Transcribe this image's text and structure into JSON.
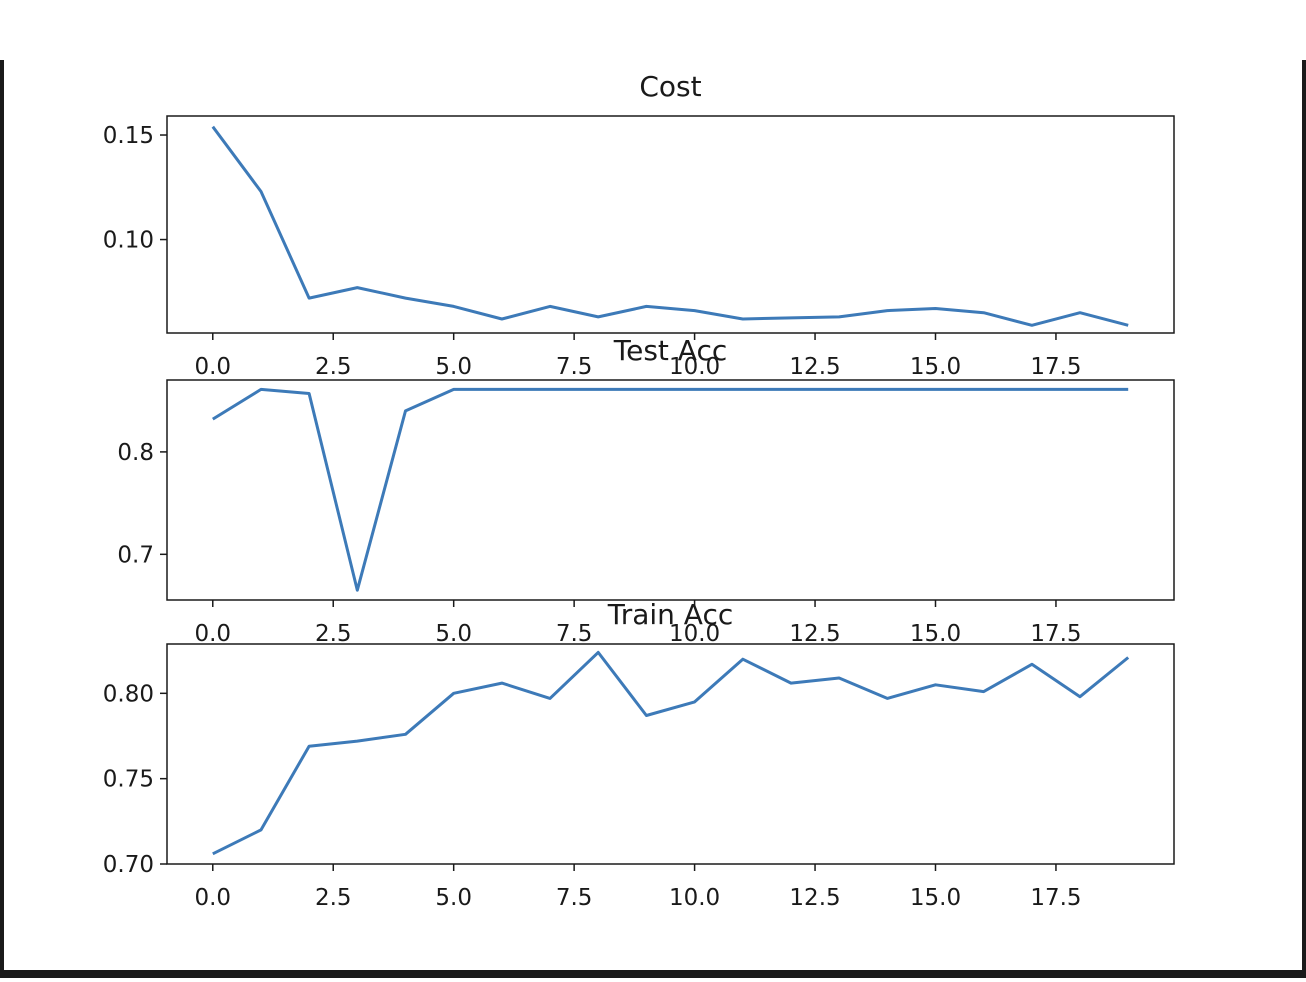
{
  "chart_data": [
    {
      "type": "line",
      "title": "Cost",
      "xlabel": "",
      "ylabel": "",
      "x": [
        0,
        1,
        2,
        3,
        4,
        5,
        6,
        7,
        8,
        9,
        10,
        11,
        12,
        13,
        14,
        15,
        16,
        17,
        18,
        19
      ],
      "xticks": [
        0.0,
        2.5,
        5.0,
        7.5,
        10.0,
        12.5,
        15.0,
        17.5
      ],
      "xtick_labels": [
        "0.0",
        "2.5",
        "5.0",
        "7.5",
        "10.0",
        "12.5",
        "15.0",
        "17.5"
      ],
      "yticks": [
        0.1,
        0.15
      ],
      "ytick_labels": [
        "0.10",
        "0.15"
      ],
      "xlim": [
        -0.95,
        19.95
      ],
      "ylim": [
        0.0553,
        0.1591
      ],
      "grid": false,
      "series": [
        {
          "color": "#3d7ab8",
          "values": [
            0.154,
            0.123,
            0.072,
            0.077,
            0.072,
            0.068,
            0.062,
            0.068,
            0.063,
            0.068,
            0.066,
            0.062,
            0.0625,
            0.063,
            0.066,
            0.067,
            0.065,
            0.059,
            0.065,
            0.059
          ]
        }
      ]
    },
    {
      "type": "line",
      "title": "Test Acc",
      "xlabel": "",
      "ylabel": "",
      "x": [
        0,
        1,
        2,
        3,
        4,
        5,
        6,
        7,
        8,
        9,
        10,
        11,
        12,
        13,
        14,
        15,
        16,
        17,
        18,
        19
      ],
      "xticks": [
        0.0,
        2.5,
        5.0,
        7.5,
        10.0,
        12.5,
        15.0,
        17.5
      ],
      "xtick_labels": [
        "0.0",
        "2.5",
        "5.0",
        "7.5",
        "10.0",
        "12.5",
        "15.0",
        "17.5"
      ],
      "yticks": [
        0.7,
        0.8
      ],
      "ytick_labels": [
        "0.7",
        "0.8"
      ],
      "xlim": [
        -0.95,
        19.95
      ],
      "ylim": [
        0.6554,
        0.8702
      ],
      "grid": false,
      "series": [
        {
          "color": "#3d7ab8",
          "values": [
            0.832,
            0.861,
            0.857,
            0.665,
            0.84,
            0.861,
            0.861,
            0.861,
            0.861,
            0.861,
            0.861,
            0.861,
            0.861,
            0.861,
            0.861,
            0.861,
            0.861,
            0.861,
            0.861,
            0.861
          ]
        }
      ]
    },
    {
      "type": "line",
      "title": "Train Acc",
      "xlabel": "",
      "ylabel": "",
      "x": [
        0,
        1,
        2,
        3,
        4,
        5,
        6,
        7,
        8,
        9,
        10,
        11,
        12,
        13,
        14,
        15,
        16,
        17,
        18,
        19
      ],
      "xticks": [
        0.0,
        2.5,
        5.0,
        7.5,
        10.0,
        12.5,
        15.0,
        17.5
      ],
      "xtick_labels": [
        "0.0",
        "2.5",
        "5.0",
        "7.5",
        "10.0",
        "12.5",
        "15.0",
        "17.5"
      ],
      "yticks": [
        0.7,
        0.75,
        0.8
      ],
      "ytick_labels": [
        "0.70",
        "0.75",
        "0.80"
      ],
      "xlim": [
        -0.95,
        19.95
      ],
      "ylim": [
        0.7,
        0.8289
      ],
      "grid": false,
      "series": [
        {
          "color": "#3d7ab8",
          "values": [
            0.706,
            0.72,
            0.769,
            0.772,
            0.776,
            0.8,
            0.806,
            0.797,
            0.824,
            0.787,
            0.795,
            0.82,
            0.806,
            0.809,
            0.797,
            0.805,
            0.801,
            0.817,
            0.798,
            0.821
          ]
        }
      ]
    }
  ]
}
